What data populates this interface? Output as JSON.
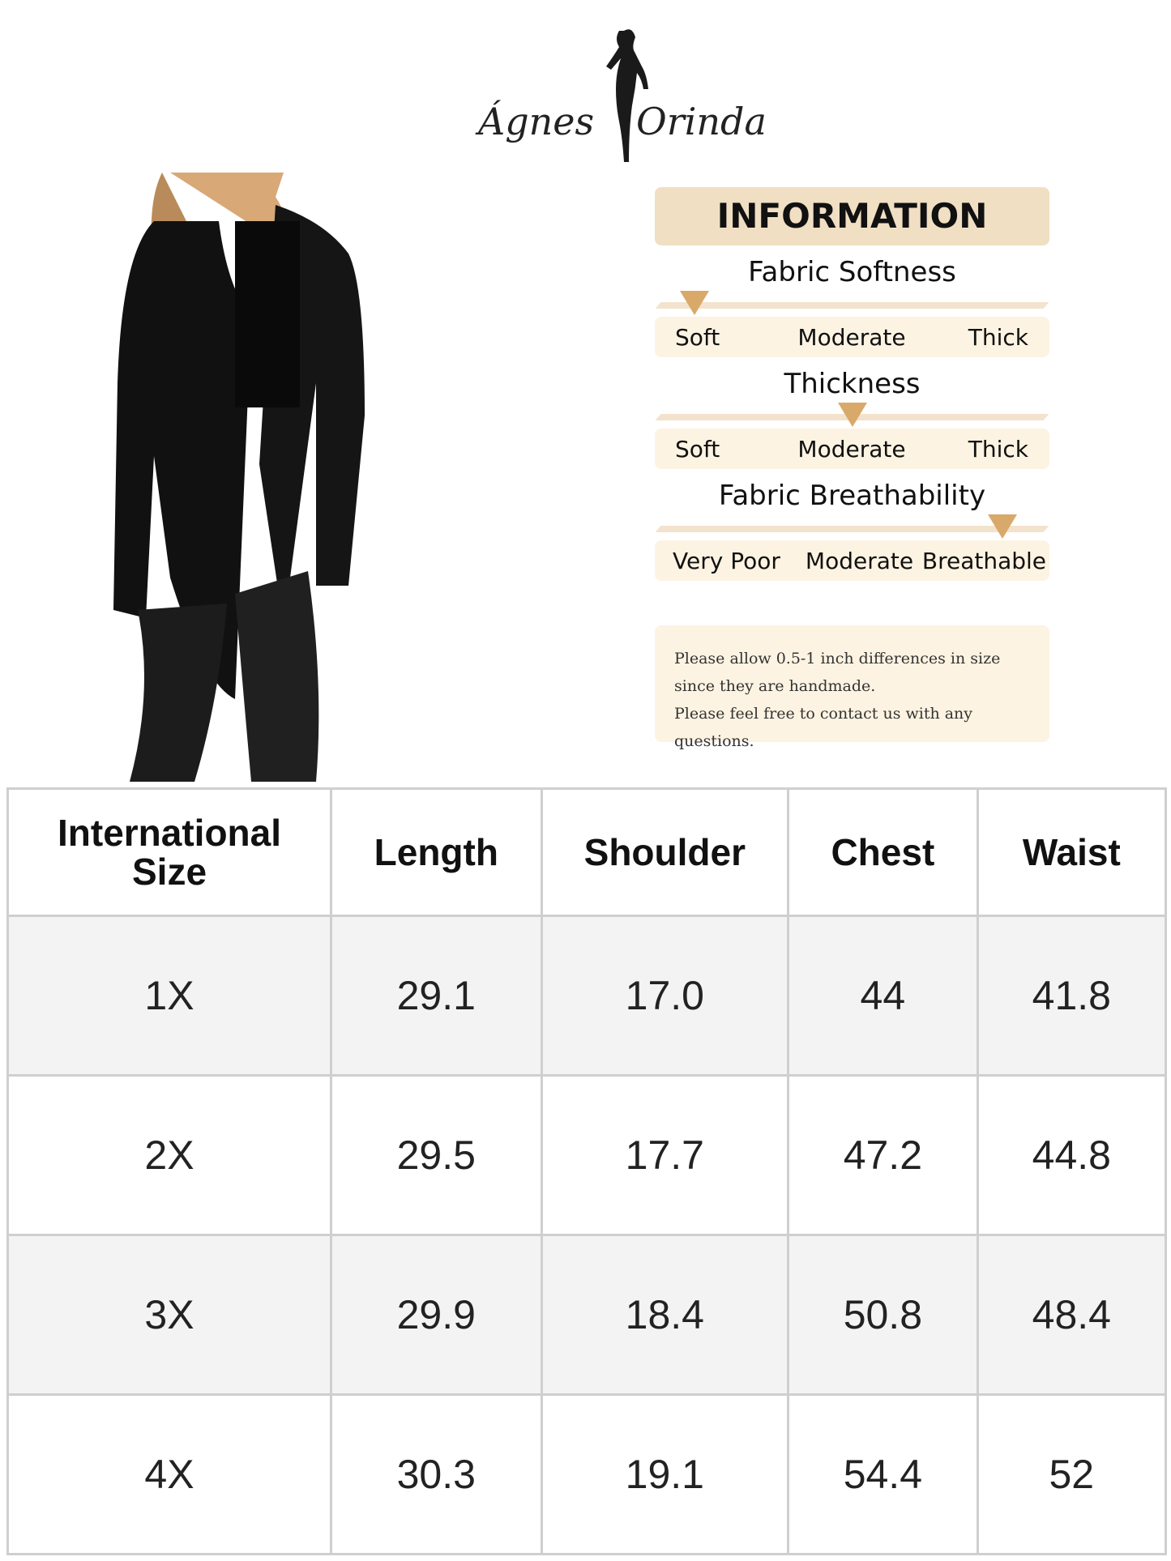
{
  "brand": {
    "left": "Ágnes",
    "right": "Orinda"
  },
  "info": {
    "title": "INFORMATION",
    "metrics": [
      {
        "title": "Fabric Softness",
        "labels": [
          "Soft",
          "Moderate",
          "Thick"
        ],
        "level": 0.1
      },
      {
        "title": "Thickness",
        "labels": [
          "Soft",
          "Moderate",
          "Thick"
        ],
        "level": 0.5
      },
      {
        "title": "Fabric Breathability",
        "labels": [
          "Very Poor",
          "Moderate",
          "Breathable"
        ],
        "level": 0.88
      }
    ],
    "accent_color": "#d9a96a"
  },
  "note": {
    "lines": [
      "Please allow 0.5-1 inch differences in size",
      "since they are handmade.",
      "Please feel free to contact us with any questions."
    ]
  },
  "table": {
    "headers": [
      "International Size",
      "Length",
      "Shoulder",
      "Chest",
      "Waist"
    ],
    "rows": [
      [
        "1X",
        "29.1",
        "17.0",
        "44",
        "41.8"
      ],
      [
        "2X",
        "29.5",
        "17.7",
        "47.2",
        "44.8"
      ],
      [
        "3X",
        "29.9",
        "18.4",
        "50.8",
        "48.4"
      ],
      [
        "4X",
        "30.3",
        "19.1",
        "54.4",
        "52"
      ]
    ]
  }
}
